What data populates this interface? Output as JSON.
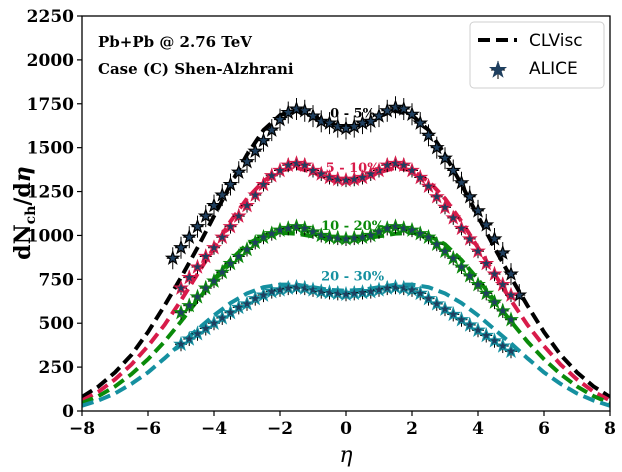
{
  "chart_data": {
    "type": "line",
    "xlabel": "η",
    "ylabel": "dN_ch/dη",
    "ylabel_main": "dN",
    "ylabel_sub": "ch",
    "ylabel_tail": "/d",
    "ylabel_eta": "η",
    "xlim": [
      -8,
      8
    ],
    "ylim": [
      0,
      2250
    ],
    "x_ticks": [
      "−8",
      "−6",
      "−4",
      "−2",
      "0",
      "2",
      "4",
      "6",
      "8"
    ],
    "x_tick_values": [
      -8,
      -6,
      -4,
      -2,
      0,
      2,
      4,
      6,
      8
    ],
    "y_ticks": [
      "0",
      "250",
      "500",
      "750",
      "1000",
      "1250",
      "1500",
      "1750",
      "2000",
      "2250"
    ],
    "y_tick_values": [
      0,
      250,
      500,
      750,
      1000,
      1250,
      1500,
      1750,
      2000,
      2250
    ],
    "annotations": [
      "Pb+Pb @ 2.76 TeV",
      "Case (C) Shen-Alzhrani"
    ],
    "legend": {
      "placement": "top-right",
      "entries": [
        {
          "label": "CLVisc",
          "style": "dashed-line"
        },
        {
          "label": "ALICE",
          "style": "star-marker"
        }
      ]
    },
    "series": [
      {
        "name": "0 - 5%",
        "color": "#000000",
        "curve_x": [
          -8,
          -7.5,
          -7,
          -6.5,
          -6,
          -5.5,
          -5,
          -4.5,
          -4,
          -3.5,
          -3,
          -2.5,
          -2,
          -1.5,
          -1,
          -0.5,
          0,
          0.5,
          1,
          1.5,
          2,
          2.5,
          3,
          3.5,
          4,
          4.5,
          5,
          5.5,
          6,
          6.5,
          7,
          7.5,
          8
        ],
        "curve_y": [
          80,
          140,
          220,
          320,
          450,
          600,
          760,
          930,
          1110,
          1290,
          1460,
          1600,
          1685,
          1710,
          1680,
          1635,
          1615,
          1635,
          1680,
          1710,
          1685,
          1600,
          1460,
          1290,
          1110,
          930,
          760,
          600,
          450,
          320,
          220,
          140,
          80
        ],
        "data_x": [
          -5.25,
          -5,
          -4.75,
          -4.5,
          -4.25,
          -4,
          -3.75,
          -3.5,
          -3.25,
          -3,
          -2.75,
          -2.5,
          -2.25,
          -2,
          -1.75,
          -1.5,
          -1.25,
          -1,
          -0.75,
          -0.5,
          -0.25,
          0,
          0.25,
          0.5,
          0.75,
          1,
          1.25,
          1.5,
          1.75,
          2,
          2.25,
          2.5,
          2.75,
          3,
          3.25,
          3.5,
          3.75,
          4,
          4.25,
          4.5,
          4.75,
          5,
          5.25
        ],
        "data_y": [
          870,
          930,
          990,
          1050,
          1110,
          1170,
          1230,
          1290,
          1360,
          1420,
          1480,
          1540,
          1600,
          1660,
          1700,
          1720,
          1710,
          1680,
          1650,
          1640,
          1620,
          1610,
          1620,
          1640,
          1650,
          1680,
          1710,
          1730,
          1720,
          1690,
          1640,
          1570,
          1500,
          1440,
          1370,
          1300,
          1220,
          1140,
          1060,
          980,
          900,
          780,
          660
        ]
      },
      {
        "name": "5 - 10%",
        "color": "#d81b4a",
        "curve_x": [
          -8,
          -7.5,
          -7,
          -6.5,
          -6,
          -5.5,
          -5,
          -4.5,
          -4,
          -3.5,
          -3,
          -2.5,
          -2,
          -1.5,
          -1,
          -0.5,
          0,
          0.5,
          1,
          1.5,
          2,
          2.5,
          3,
          3.5,
          4,
          4.5,
          5,
          5.5,
          6,
          6.5,
          7,
          7.5,
          8
        ],
        "curve_y": [
          60,
          110,
          180,
          265,
          370,
          490,
          630,
          780,
          930,
          1080,
          1210,
          1310,
          1370,
          1385,
          1360,
          1320,
          1305,
          1320,
          1360,
          1385,
          1370,
          1310,
          1210,
          1080,
          930,
          780,
          630,
          490,
          370,
          265,
          180,
          110,
          60
        ],
        "data_x": [
          -5,
          -4.75,
          -4.5,
          -4.25,
          -4,
          -3.75,
          -3.5,
          -3.25,
          -3,
          -2.75,
          -2.5,
          -2.25,
          -2,
          -1.75,
          -1.5,
          -1.25,
          -1,
          -0.75,
          -0.5,
          -0.25,
          0,
          0.25,
          0.5,
          0.75,
          1,
          1.25,
          1.5,
          1.75,
          2,
          2.25,
          2.5,
          2.75,
          3,
          3.25,
          3.5,
          3.75,
          4,
          4.25,
          4.5,
          4.75,
          5
        ],
        "data_y": [
          700,
          760,
          820,
          880,
          930,
          990,
          1050,
          1110,
          1170,
          1230,
          1290,
          1340,
          1370,
          1400,
          1410,
          1400,
          1370,
          1350,
          1330,
          1320,
          1315,
          1320,
          1330,
          1350,
          1370,
          1400,
          1410,
          1400,
          1370,
          1330,
          1280,
          1220,
          1160,
          1100,
          1040,
          980,
          910,
          840,
          780,
          720,
          660
        ]
      },
      {
        "name": "10 - 20%",
        "color": "#0a8a0a",
        "curve_x": [
          -8,
          -7.5,
          -7,
          -6.5,
          -6,
          -5.5,
          -5,
          -4.5,
          -4,
          -3.5,
          -3,
          -2.5,
          -2,
          -1.5,
          -1,
          -0.5,
          0,
          0.5,
          1,
          1.5,
          2,
          2.5,
          3,
          3.5,
          4,
          4.5,
          5,
          5.5,
          6,
          6.5,
          7,
          7.5,
          8
        ],
        "curve_y": [
          45,
          85,
          140,
          210,
          295,
          395,
          510,
          630,
          750,
          860,
          950,
          1000,
          1015,
          1010,
          995,
          980,
          975,
          980,
          995,
          1010,
          1015,
          1000,
          950,
          860,
          750,
          630,
          510,
          395,
          295,
          210,
          140,
          85,
          45
        ],
        "data_x": [
          -5,
          -4.75,
          -4.5,
          -4.25,
          -4,
          -3.75,
          -3.5,
          -3.25,
          -3,
          -2.75,
          -2.5,
          -2.25,
          -2,
          -1.75,
          -1.5,
          -1.25,
          -1,
          -0.75,
          -0.5,
          -0.25,
          0,
          0.25,
          0.5,
          0.75,
          1,
          1.25,
          1.5,
          1.75,
          2,
          2.25,
          2.5,
          2.75,
          3,
          3.25,
          3.5,
          3.75,
          4,
          4.25,
          4.5,
          4.75,
          5
        ],
        "data_y": [
          560,
          600,
          650,
          700,
          740,
          790,
          840,
          880,
          920,
          960,
          990,
          1010,
          1030,
          1040,
          1050,
          1040,
          1020,
          1000,
          990,
          985,
          980,
          985,
          990,
          1000,
          1020,
          1040,
          1050,
          1040,
          1030,
          1010,
          990,
          950,
          910,
          870,
          820,
          770,
          720,
          670,
          620,
          570,
          520
        ]
      },
      {
        "name": "20 - 30%",
        "color": "#1590a0",
        "curve_x": [
          -8,
          -7.5,
          -7,
          -6.5,
          -6,
          -5.5,
          -5,
          -4.5,
          -4,
          -3.5,
          -3,
          -2.5,
          -2,
          -1.5,
          -1,
          -0.5,
          0,
          0.5,
          1,
          1.5,
          2,
          2.5,
          3,
          3.5,
          4,
          4.5,
          5,
          5.5,
          6,
          6.5,
          7,
          7.5,
          8
        ],
        "curve_y": [
          30,
          60,
          100,
          155,
          220,
          300,
          385,
          465,
          545,
          615,
          670,
          705,
          720,
          720,
          705,
          690,
          685,
          690,
          705,
          720,
          720,
          705,
          670,
          615,
          545,
          465,
          385,
          300,
          220,
          155,
          100,
          60,
          30
        ],
        "data_x": [
          -5,
          -4.75,
          -4.5,
          -4.25,
          -4,
          -3.75,
          -3.5,
          -3.25,
          -3,
          -2.75,
          -2.5,
          -2.25,
          -2,
          -1.75,
          -1.5,
          -1.25,
          -1,
          -0.75,
          -0.5,
          -0.25,
          0,
          0.25,
          0.5,
          0.75,
          1,
          1.25,
          1.5,
          1.75,
          2,
          2.25,
          2.5,
          2.75,
          3,
          3.25,
          3.5,
          3.75,
          4,
          4.25,
          4.5,
          4.75,
          5
        ],
        "data_y": [
          380,
          410,
          440,
          470,
          500,
          530,
          560,
          590,
          610,
          640,
          660,
          680,
          690,
          700,
          705,
          700,
          690,
          680,
          675,
          670,
          665,
          670,
          675,
          680,
          690,
          700,
          705,
          700,
          690,
          670,
          640,
          610,
          580,
          550,
          520,
          490,
          460,
          430,
          400,
          370,
          340
        ]
      }
    ]
  }
}
